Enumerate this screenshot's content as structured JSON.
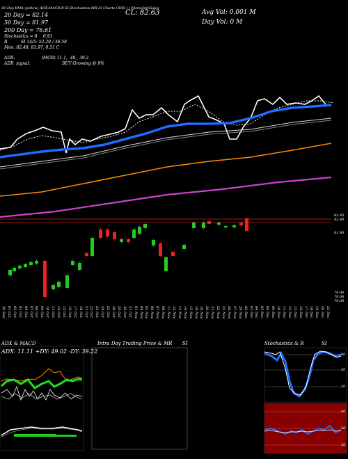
{
  "header": {
    "symbol_line": "00 Day EMA (yellow) ADX,MACD,R SI,Stochastics,MR SI Charts CDEI ( ) MomoInfoSales",
    "cl_label": "CL: 82.63",
    "avg_vol": "Avg Vol: 0.001 M",
    "day_vol": "Day Vol: 0   M",
    "ema20": "20  Day = 82.14",
    "ema50": "50  Day = 81.97",
    "ema200": "200  Day = 76.61",
    "stochastics_label": "Stochastics = 8",
    "stochastics_val": "6.91",
    "si_label": "SI 14/5: 52.29 / 36.58",
    "r_label": "R",
    "ohlc": "Mon: 82.48,  81.97,  0.51 C",
    "adx_line": "ADX:                    (MGR) 11.1,  49,  39.2",
    "adx_signal": "ADX  signal:                        BUY Growing @ 9%"
  },
  "price_labels": {
    "p1": "82.83",
    "p2": "82.48",
    "p3": "81.96",
    "p4": "79.06",
    "p5": "79.06",
    "p6": "79.06"
  },
  "x_dates": [
    "30 Sep",
    "01 Oct",
    "02 Oct",
    "03 Oct",
    "04 Oct",
    "07 Oct",
    "08 Oct",
    "09 Oct",
    "10 Oct",
    "11 Oct",
    "14 Oct",
    "15 Oct",
    "16 Oct",
    "17 Oct",
    "18 Oct",
    "21 Oct",
    "22 Oct",
    "23 Oct",
    "24 Oct",
    "25 Oct",
    "28 Oct",
    "29 Oct",
    "30 Oct",
    "31 Oct",
    "01 Nov",
    "04 Nov",
    "05 Nov",
    "06 Nov",
    "07 Nov",
    "08 Nov",
    "11 Nov",
    "12 Nov",
    "13 Nov",
    "14 Nov",
    "15 Nov",
    "18 Nov",
    "19 Nov",
    "20 Nov",
    "21 Nov",
    "22 Nov",
    "25 Nov",
    "26 Nov",
    "27 Nov",
    "29 Nov",
    "02 Dec",
    "03 Dec",
    "04 Dec",
    "05 Dec",
    "06 Dec",
    "09 Dec",
    "10 Dec",
    "11 Dec",
    "12 Dec",
    "13 Dec",
    "16 Dec",
    "17 Dec",
    "18 Dec",
    "19 Dec",
    "20 Dec",
    "23 Dec"
  ],
  "panels": {
    "adx_title": "ADX  & MACD",
    "adx_values": "ADX: 11.11 +DY: 49.02  -DY: 39.22",
    "intra_title": "Intra  Day Trading Price  & MR",
    "intra_si": "SI",
    "stoch_title": "Stochastics & R",
    "stoch_si": "SI",
    "stoch_ticks": [
      "80",
      "50",
      "20"
    ],
    "rsi_ticks": [
      "80",
      "50",
      "20"
    ]
  },
  "colors": {
    "bg": "#000000",
    "price_line": "#ffffff",
    "ema_blue": "#1e6cff",
    "ema_orange": "#ff8c00",
    "ema_magenta": "#d040d0",
    "up": "#22cc22",
    "down": "#ee2222",
    "rsi_bg": "#880000"
  }
}
